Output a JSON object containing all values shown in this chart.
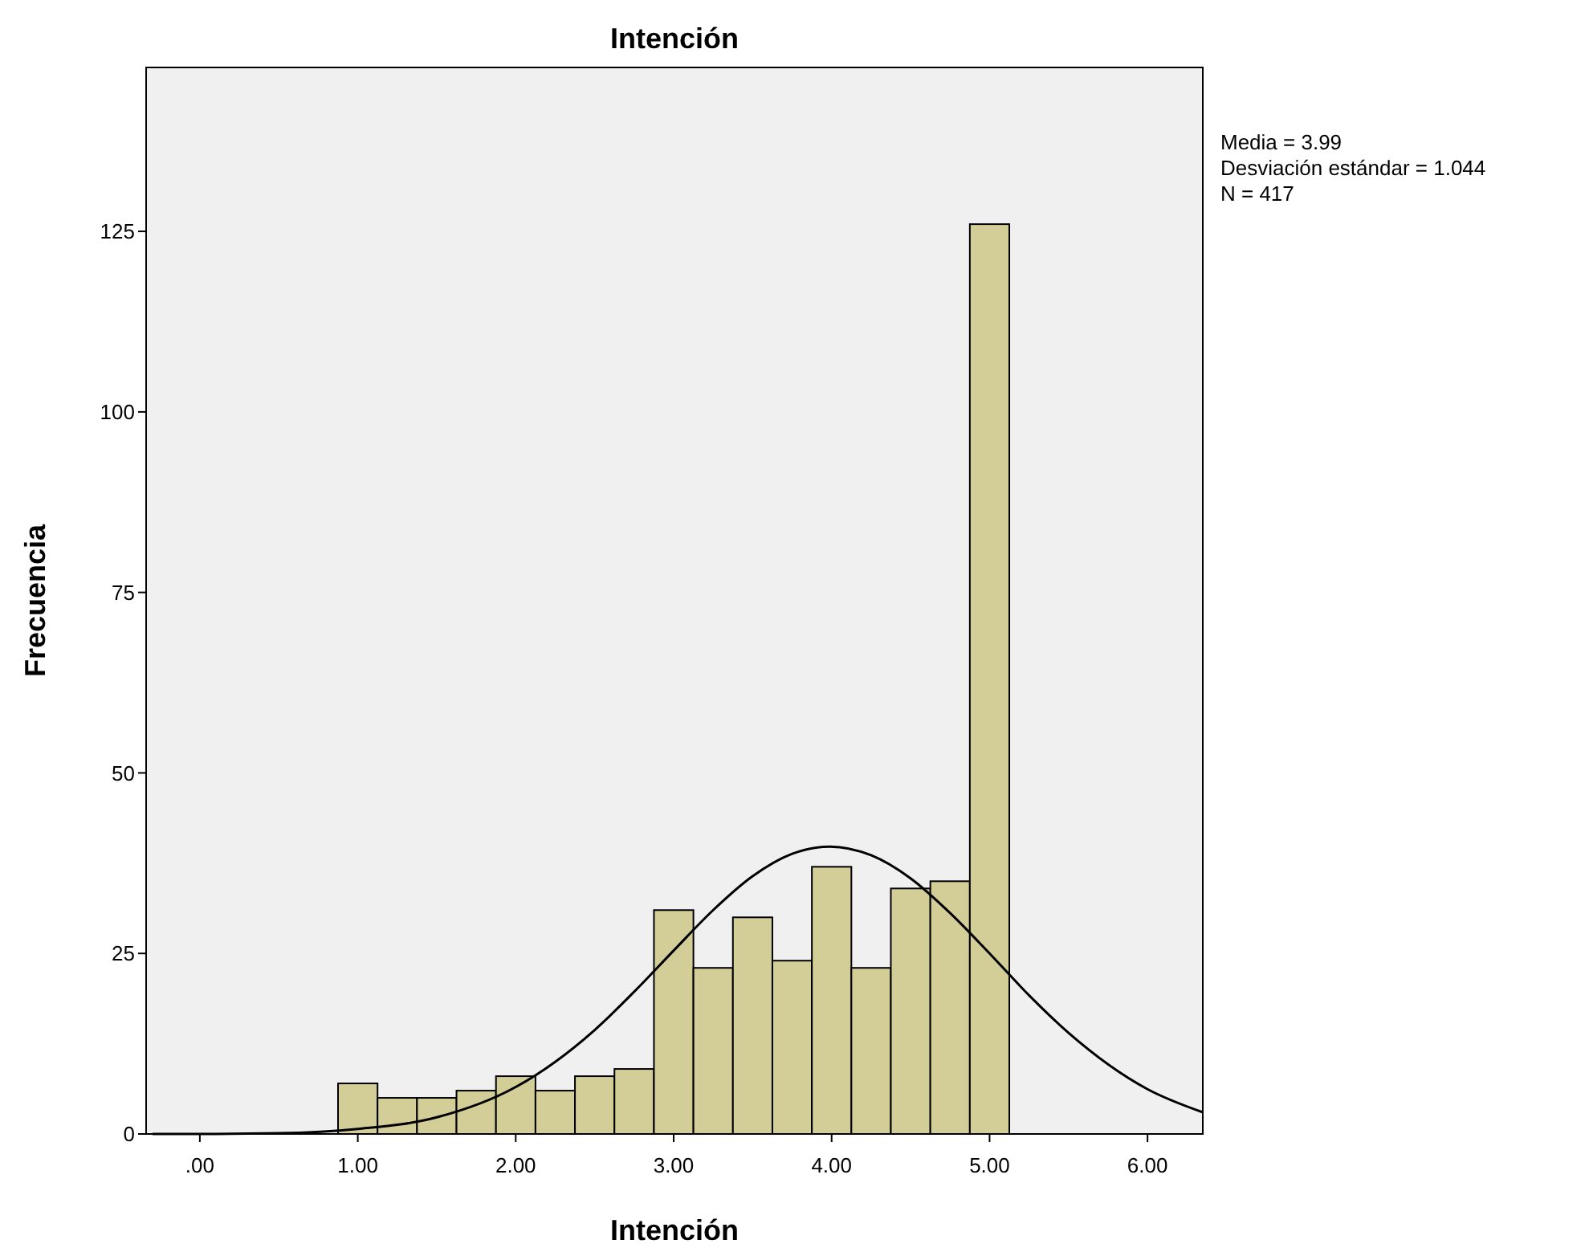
{
  "chart_data": {
    "type": "histogram",
    "title": "Intención",
    "xlabel": "Intención",
    "ylabel": "Frecuencia",
    "bins": [
      0.875,
      1.125,
      1.375,
      1.625,
      1.875,
      2.125,
      2.375,
      2.625,
      2.875,
      3.125,
      3.375,
      3.625,
      3.875,
      4.125,
      4.375,
      4.625,
      4.875,
      5.125
    ],
    "values": [
      7,
      5,
      5,
      6,
      8,
      6,
      8,
      9,
      31,
      23,
      30,
      24,
      37,
      23,
      34,
      35,
      126
    ],
    "color": "#d3ce97",
    "series": [
      {
        "type": "line",
        "color": "#000000",
        "x": [
          -0.3,
          0,
          0.5,
          1,
          1.5,
          2,
          2.5,
          2.75,
          3,
          3.25,
          3.5,
          3.75,
          3.99,
          4.25,
          4.5,
          4.75,
          5,
          5.25,
          5.5,
          6,
          6.35
        ],
        "values": [
          0,
          0,
          0.1,
          0.7,
          2.3,
          6.5,
          14.4,
          19.7,
          25.4,
          31,
          35.7,
          38.8,
          39.8,
          38.6,
          35.4,
          30.6,
          25,
          19.2,
          14,
          6.2,
          3
        ]
      }
    ],
    "xlim": [
      -0.34,
      6.35
    ],
    "xticks": [
      {
        "value": 0,
        "label": ".00"
      },
      {
        "value": 1,
        "label": "1.00"
      },
      {
        "value": 2,
        "label": "2.00"
      },
      {
        "value": 3,
        "label": "3.00"
      },
      {
        "value": 4,
        "label": "4.00"
      },
      {
        "value": 5,
        "label": "5.00"
      },
      {
        "value": 6,
        "label": "6.00"
      }
    ],
    "ylim": [
      0,
      147.7
    ],
    "yticks": [
      0,
      25,
      50,
      75,
      100,
      125
    ],
    "grid": false,
    "annotations": [
      "Media = 3.99",
      "Desviación estándar = 1.044",
      "N = 417"
    ]
  }
}
